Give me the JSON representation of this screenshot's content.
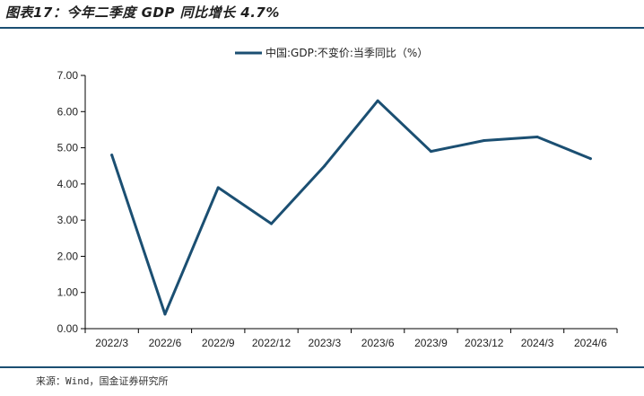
{
  "figure": {
    "title": "图表17：今年二季度 GDP 同比增长 4.7%",
    "source": "来源：Wind，国金证券研究所"
  },
  "colors": {
    "line": "#1b4f72",
    "axis": "#000000",
    "rule": "#1b4f72"
  },
  "chart_data": {
    "type": "line",
    "title": "",
    "xlabel": "",
    "ylabel": "",
    "legend_position": "top-center",
    "grid": false,
    "categories": [
      "2022/3",
      "2022/6",
      "2022/9",
      "2022/12",
      "2023/3",
      "2023/6",
      "2023/9",
      "2023/12",
      "2024/3",
      "2024/6"
    ],
    "x_tick_labels": [
      "2022/3",
      "2022/6",
      "2022/9",
      "2022/12",
      "2023/3",
      "2023/6",
      "2023/9",
      "2023/12",
      "2024/3",
      "2024/6"
    ],
    "y_tick_labels": [
      "0.00",
      "1.00",
      "2.00",
      "3.00",
      "4.00",
      "5.00",
      "6.00",
      "7.00"
    ],
    "ylim": [
      0,
      7
    ],
    "series": [
      {
        "name": "中国:GDP:不变价:当季同比（%）",
        "values": [
          4.8,
          0.4,
          3.9,
          2.9,
          4.5,
          6.3,
          4.9,
          5.2,
          5.3,
          4.7
        ]
      }
    ]
  }
}
